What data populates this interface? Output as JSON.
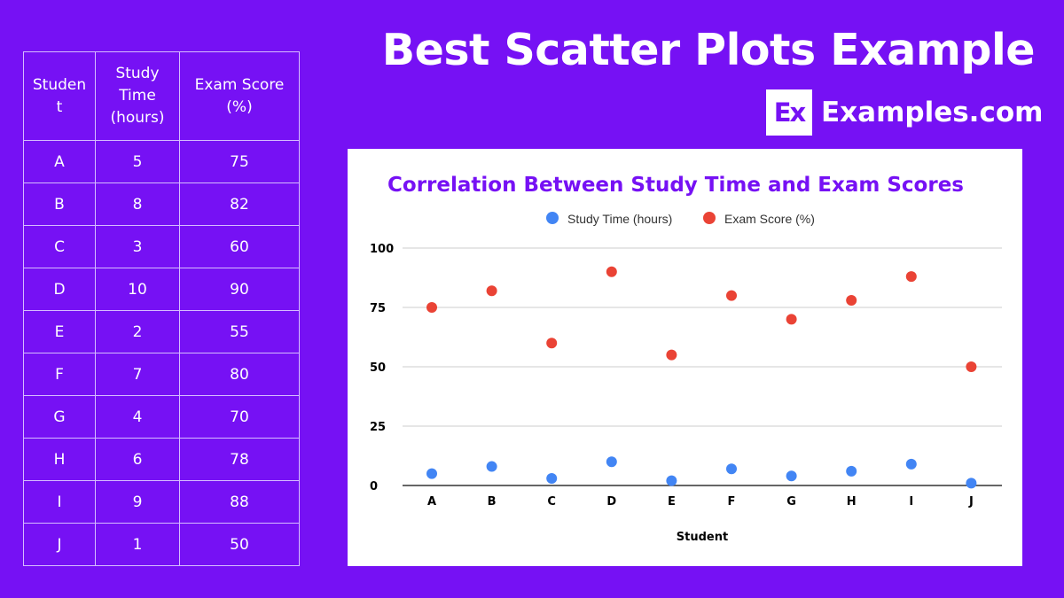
{
  "header": {
    "title": "Best Scatter Plots Example",
    "brand_logo": "Ex",
    "brand_name": "Examples.com"
  },
  "table": {
    "headers": [
      "Studen t",
      "Study Time (hours)",
      "Exam Score (%)"
    ],
    "rows": [
      [
        "A",
        "5",
        "75"
      ],
      [
        "B",
        "8",
        "82"
      ],
      [
        "C",
        "3",
        "60"
      ],
      [
        "D",
        "10",
        "90"
      ],
      [
        "E",
        "2",
        "55"
      ],
      [
        "F",
        "7",
        "80"
      ],
      [
        "G",
        "4",
        "70"
      ],
      [
        "H",
        "6",
        "78"
      ],
      [
        "I",
        "9",
        "88"
      ],
      [
        "J",
        "1",
        "50"
      ]
    ]
  },
  "chart_data": {
    "type": "scatter",
    "title": "Correlation Between Study Time and Exam Scores",
    "xlabel": "Student",
    "ylabel": "",
    "categories": [
      "A",
      "B",
      "C",
      "D",
      "E",
      "F",
      "G",
      "H",
      "I",
      "J"
    ],
    "series": [
      {
        "name": "Study Time (hours)",
        "color": "#4285f4",
        "values": [
          5,
          8,
          3,
          10,
          2,
          7,
          4,
          6,
          9,
          1
        ]
      },
      {
        "name": "Exam Score (%)",
        "color": "#ea4335",
        "values": [
          75,
          82,
          60,
          90,
          55,
          80,
          70,
          78,
          88,
          50
        ]
      }
    ],
    "ylim": [
      0,
      100
    ],
    "yticks": [
      "0",
      "25",
      "50",
      "75",
      "100"
    ],
    "grid": true,
    "legend_position": "top",
    "title_color": "#7611f4"
  },
  "colors": {
    "background": "#7611f4",
    "panel": "#ffffff",
    "text": "#ffffff"
  }
}
